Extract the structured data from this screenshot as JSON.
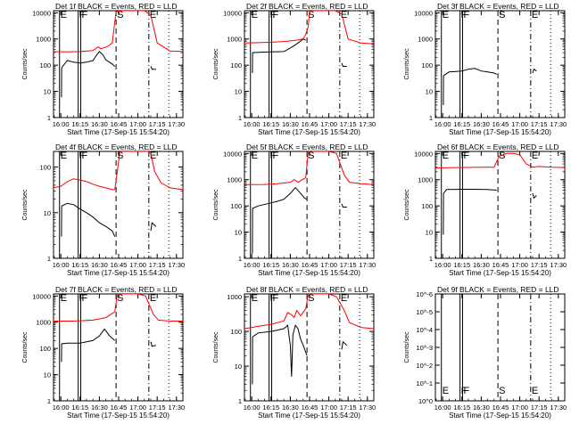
{
  "figure": {
    "xlabel": "Start Time (17-Sep-15 15:54:20)",
    "ylabel": "Counts/sec",
    "x_tick_labels": [
      "16:00",
      "16:15",
      "16:30",
      "16:45",
      "17:00",
      "17:15",
      "17:30"
    ],
    "marker_lines": [
      {
        "letter": "E",
        "x": "15:59:00",
        "style": "solid"
      },
      {
        "letter": "F",
        "x": "16:13:30",
        "style": "solid"
      },
      {
        "letter": "F",
        "x": "16:15:30",
        "style": "solid"
      },
      {
        "letter": "S",
        "x": "16:43:00",
        "style": "dashed"
      },
      {
        "letter": "E",
        "x": "17:08:30",
        "style": "dash-dot"
      },
      {
        "letter": "",
        "x": "17:24:00",
        "style": "dotted"
      }
    ],
    "colors": {
      "events": "#000000",
      "lld": "#ff0000",
      "axes": "#000000"
    }
  },
  "chart_data": [
    {
      "type": "line",
      "title": "Det 1f BLACK = Events, RED = LLD",
      "ylog": true,
      "yticks": [
        "1",
        "10",
        "100",
        "1000",
        "10000"
      ],
      "ylim": [
        1,
        12000
      ],
      "xlim": [
        "15:54:20",
        "17:35:00"
      ],
      "series": [
        {
          "name": "LLD",
          "color": "#ff0000",
          "x": [
            "15:54:20",
            "16:05",
            "16:15",
            "16:25",
            "16:29",
            "16:31",
            "16:36",
            "16:40",
            "16:43",
            "16:48",
            "16:55",
            "17:00",
            "17:05",
            "17:10",
            "17:15",
            "17:25",
            "17:35"
          ],
          "y": [
            330,
            320,
            330,
            360,
            500,
            420,
            500,
            700,
            11000,
            12000,
            12000,
            12000,
            12000,
            8000,
            700,
            350,
            330
          ]
        },
        {
          "name": "Events",
          "color": "#000000",
          "x": [
            "16:00:30",
            "16:00:40",
            "16:05",
            "16:10",
            "16:15",
            "16:20",
            "16:25",
            "16:28",
            "16:30",
            "16:33",
            "16:35",
            "16:40",
            "16:42"
          ],
          "y": [
            6,
            80,
            150,
            130,
            120,
            130,
            150,
            250,
            330,
            240,
            160,
            110,
            90
          ]
        },
        {
          "name": "Events",
          "color": "#000000",
          "x": [
            "17:10",
            "17:11",
            "17:14"
          ],
          "y": [
            90,
            70,
            70
          ]
        }
      ]
    },
    {
      "type": "line",
      "title": "Det 2f BLACK = Events, RED = LLD",
      "ylog": true,
      "yticks": [
        "1",
        "10",
        "100",
        "1000",
        "10000"
      ],
      "ylim": [
        1,
        12000
      ],
      "xlim": [
        "15:54:20",
        "17:35:00"
      ],
      "series": [
        {
          "name": "LLD",
          "color": "#ff0000",
          "x": [
            "15:54:20",
            "16:05",
            "16:15",
            "16:25",
            "16:35",
            "16:40",
            "16:42",
            "16:44",
            "16:45",
            "16:50",
            "17:00",
            "17:05",
            "17:10",
            "17:15",
            "17:25",
            "17:35"
          ],
          "y": [
            700,
            720,
            750,
            800,
            900,
            1000,
            1500,
            3000,
            12000,
            12000,
            12000,
            12000,
            9000,
            1000,
            700,
            650
          ]
        },
        {
          "name": "Events",
          "color": "#000000",
          "x": [
            "16:00:30",
            "16:00:40",
            "16:05",
            "16:15",
            "16:25",
            "16:30",
            "16:35",
            "16:40",
            "16:42"
          ],
          "y": [
            50,
            300,
            310,
            320,
            330,
            450,
            650,
            1000,
            900
          ]
        },
        {
          "name": "Events",
          "color": "#000000",
          "x": [
            "17:10",
            "17:11",
            "17:14"
          ],
          "y": [
            120,
            90,
            90
          ]
        }
      ]
    },
    {
      "type": "line",
      "title": "Det 3f BLACK = Events, RED = LLD",
      "ylog": true,
      "yticks": [
        "1",
        "10",
        "100",
        "1000",
        "10000"
      ],
      "ylim": [
        1,
        12000
      ],
      "xlim": [
        "15:54:20",
        "17:35:00"
      ],
      "series": [
        {
          "name": "Events",
          "color": "#000000",
          "x": [
            "16:00:30",
            "16:00:40",
            "16:05",
            "16:15",
            "16:20",
            "16:25",
            "16:30",
            "16:35",
            "16:40",
            "16:42"
          ],
          "y": [
            3,
            40,
            55,
            60,
            70,
            75,
            60,
            55,
            50,
            45
          ]
        },
        {
          "name": "Events",
          "color": "#000000",
          "x": [
            "17:10",
            "17:11",
            "17:13"
          ],
          "y": [
            50,
            70,
            60
          ]
        }
      ]
    },
    {
      "type": "line",
      "title": "Det 4f BLACK = Events, RED = LLD",
      "ylog": true,
      "yticks": [
        "1",
        "10",
        "100"
      ],
      "ylim": [
        1,
        220
      ],
      "xlim": [
        "15:54:20",
        "17:35:00"
      ],
      "series": [
        {
          "name": "LLD",
          "color": "#ff0000",
          "x": [
            "15:54:20",
            "16:00",
            "16:05",
            "16:10",
            "16:15",
            "16:20",
            "16:25",
            "16:30",
            "16:35",
            "16:40",
            "16:42",
            "16:44",
            "16:46",
            "17:08",
            "17:10",
            "17:13",
            "17:18",
            "17:25",
            "17:35"
          ],
          "y": [
            35,
            38,
            48,
            55,
            52,
            48,
            42,
            38,
            35,
            32,
            32,
            80,
            220,
            220,
            200,
            80,
            45,
            35,
            32
          ]
        },
        {
          "name": "Events",
          "color": "#000000",
          "x": [
            "16:00:30",
            "16:00:40",
            "16:05",
            "16:10",
            "16:15",
            "16:20",
            "16:25",
            "16:30",
            "16:35",
            "16:40",
            "16:42"
          ],
          "y": [
            3,
            14,
            16,
            15,
            12,
            10,
            8,
            6,
            5,
            4,
            3
          ]
        },
        {
          "name": "Events",
          "color": "#000000",
          "x": [
            "17:10",
            "17:11",
            "17:14"
          ],
          "y": [
            4,
            6,
            5
          ]
        }
      ]
    },
    {
      "type": "line",
      "title": "Det 5f BLACK = Events, RED = LLD",
      "ylog": true,
      "yticks": [
        "1",
        "10",
        "100",
        "1000",
        "10000"
      ],
      "ylim": [
        1,
        12000
      ],
      "xlim": [
        "15:54:20",
        "17:35:00"
      ],
      "series": [
        {
          "name": "LLD",
          "color": "#ff0000",
          "x": [
            "15:54:20",
            "16:10",
            "16:20",
            "16:30",
            "16:33",
            "16:36",
            "16:42",
            "16:44",
            "16:47",
            "17:00",
            "17:06",
            "17:12",
            "17:16",
            "17:25",
            "17:35"
          ],
          "y": [
            650,
            660,
            700,
            800,
            1000,
            800,
            1200,
            12000,
            12000,
            12000,
            10000,
            1500,
            800,
            700,
            650
          ]
        },
        {
          "name": "Events",
          "color": "#000000",
          "x": [
            "16:00:30",
            "16:00:40",
            "16:05",
            "16:12",
            "16:20",
            "16:25",
            "16:30",
            "16:34",
            "16:38",
            "16:41",
            "16:43"
          ],
          "y": [
            1.5,
            80,
            100,
            120,
            150,
            180,
            300,
            500,
            300,
            200,
            180
          ]
        },
        {
          "name": "Events",
          "color": "#000000",
          "x": [
            "17:10",
            "17:11",
            "17:14"
          ],
          "y": [
            120,
            90,
            90
          ]
        }
      ]
    },
    {
      "type": "line",
      "title": "Det 6f BLACK = Events, RED = LLD",
      "ylog": true,
      "yticks": [
        "1",
        "10",
        "100",
        "1000",
        "10000"
      ],
      "ylim": [
        1,
        12000
      ],
      "xlim": [
        "15:54:20",
        "17:35:00"
      ],
      "series": [
        {
          "name": "LLD",
          "color": "#ff0000",
          "x": [
            "15:54:20",
            "16:10",
            "16:30",
            "16:40",
            "16:44",
            "16:50",
            "16:55",
            "17:00",
            "17:05",
            "17:10",
            "17:15",
            "17:25",
            "17:35"
          ],
          "y": [
            2800,
            2900,
            3000,
            3000,
            8000,
            10000,
            10000,
            9000,
            4000,
            3000,
            3200,
            3000,
            2900
          ]
        },
        {
          "name": "Events",
          "color": "#000000",
          "x": [
            "16:00:30",
            "16:00:40",
            "16:03",
            "16:15",
            "16:25",
            "16:35",
            "16:42"
          ],
          "y": [
            8,
            300,
            420,
            430,
            430,
            420,
            400
          ]
        },
        {
          "name": "Events",
          "color": "#000000",
          "x": [
            "17:10",
            "17:11",
            "17:13"
          ],
          "y": [
            300,
            200,
            250
          ]
        }
      ]
    },
    {
      "type": "line",
      "title": "Det 7f BLACK = Events, RED = LLD",
      "ylog": true,
      "yticks": [
        "1",
        "10",
        "100",
        "1000",
        "10000"
      ],
      "ylim": [
        1,
        12000
      ],
      "xlim": [
        "15:54:20",
        "17:35:00"
      ],
      "series": [
        {
          "name": "LLD",
          "color": "#ff0000",
          "x": [
            "15:54:20",
            "16:10",
            "16:25",
            "16:35",
            "16:42",
            "16:44",
            "16:47",
            "17:00",
            "17:06",
            "17:12",
            "17:16",
            "17:25",
            "17:35"
          ],
          "y": [
            1100,
            1100,
            1200,
            1500,
            2500,
            12000,
            12000,
            12000,
            10000,
            2000,
            1200,
            1100,
            1100
          ]
        },
        {
          "name": "Events",
          "color": "#000000",
          "x": [
            "16:00:30",
            "16:00:40",
            "16:05",
            "16:15",
            "16:25",
            "16:30",
            "16:34",
            "16:38",
            "16:42"
          ],
          "y": [
            30,
            150,
            160,
            160,
            200,
            300,
            550,
            300,
            200
          ]
        },
        {
          "name": "Events",
          "color": "#000000",
          "x": [
            "17:10",
            "17:11",
            "17:14"
          ],
          "y": [
            180,
            120,
            130
          ]
        }
      ]
    },
    {
      "type": "line",
      "title": "Det 8f BLACK = Events, RED = LLD",
      "ylog": true,
      "yticks": [
        "1",
        "10",
        "100",
        "1000"
      ],
      "ylim": [
        1,
        1200
      ],
      "xlim": [
        "15:54:20",
        "17:35:00"
      ],
      "series": [
        {
          "name": "LLD",
          "color": "#ff0000",
          "x": [
            "15:54:20",
            "16:05",
            "16:15",
            "16:25",
            "16:28",
            "16:31",
            "16:33",
            "16:35",
            "16:38",
            "16:42",
            "16:44",
            "16:47",
            "17:00",
            "17:06",
            "17:12",
            "17:16",
            "17:25",
            "17:35"
          ],
          "y": [
            120,
            140,
            160,
            200,
            350,
            300,
            250,
            400,
            280,
            450,
            1200,
            1200,
            1200,
            1000,
            400,
            180,
            130,
            120
          ]
        },
        {
          "name": "Events",
          "color": "#000000",
          "x": [
            "16:00:30",
            "16:00:40",
            "16:05",
            "16:15",
            "16:25",
            "16:28",
            "16:30",
            "16:31",
            "16:32",
            "16:34",
            "16:36",
            "16:38",
            "16:40",
            "16:43"
          ],
          "y": [
            3,
            70,
            90,
            100,
            120,
            150,
            40,
            5,
            80,
            150,
            120,
            60,
            40,
            20
          ]
        },
        {
          "name": "Events",
          "color": "#000000",
          "x": [
            "17:10",
            "17:11",
            "17:14"
          ],
          "y": [
            30,
            50,
            40
          ]
        }
      ]
    },
    {
      "type": "line",
      "title": "Det 9f BLACK = Events, RED = LLD",
      "ylog": true,
      "yticks": [
        "10^0",
        "10^-1",
        "10^-2",
        "10^-3",
        "10^-4",
        "10^-5",
        "10^-6"
      ],
      "ylim": [
        0,
        6
      ],
      "xlim": [
        "15:54:20",
        "17:35:00"
      ],
      "series": []
    }
  ]
}
